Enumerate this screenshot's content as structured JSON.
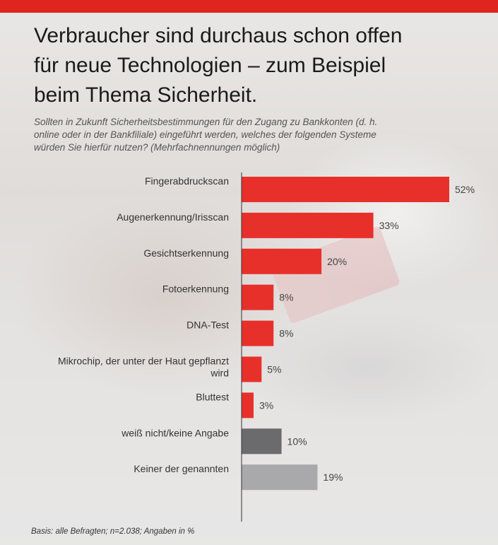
{
  "header": {
    "title_line1": "Verbraucher sind durchaus schon offen",
    "title_line2": "für neue Technologien – zum Beispiel",
    "title_line3": "beim Thema Sicherheit.",
    "subtitle_line1": "Sollten in Zukunft Sicherheitsbestimmungen für den Zugang zu Bankkonten (d. h.",
    "subtitle_line2": "online oder in der Bankfiliale) eingeführt werden, welches der folgenden Systeme",
    "subtitle_line3": "würden Sie hierfür nutzen? (Mehrfachnennungen möglich)"
  },
  "colors": {
    "accent": "#e0251f",
    "bar_red": "#e8302b",
    "bar_dark_gray": "#6b6b6d",
    "bar_light_gray": "#a9a9ab"
  },
  "chart_data": {
    "type": "bar",
    "orientation": "horizontal",
    "categories": [
      [
        "Fingerabdruckscan"
      ],
      [
        "Augenerkennung/Irisscan"
      ],
      [
        "Gesichtserkennung"
      ],
      [
        "Fotoerkennung"
      ],
      [
        "DNA-Test"
      ],
      [
        "Mikrochip, der unter der Haut gepflanzt",
        "wird"
      ],
      [
        "Bluttest"
      ],
      [
        "weiß nicht/keine Angabe"
      ],
      [
        "Keiner der genannten"
      ]
    ],
    "values": [
      52,
      33,
      20,
      8,
      8,
      5,
      3,
      10,
      19
    ],
    "value_labels": [
      "52%",
      "33%",
      "20%",
      "8%",
      "8%",
      "5%",
      "3%",
      "10%",
      "19%"
    ],
    "bar_colors": [
      "red",
      "red",
      "red",
      "red",
      "red",
      "red",
      "red",
      "dark_gray",
      "light_gray"
    ],
    "xlim": [
      0,
      52
    ]
  },
  "footnote": "Basis: alle Befragten; n=2.038; Angaben in %"
}
